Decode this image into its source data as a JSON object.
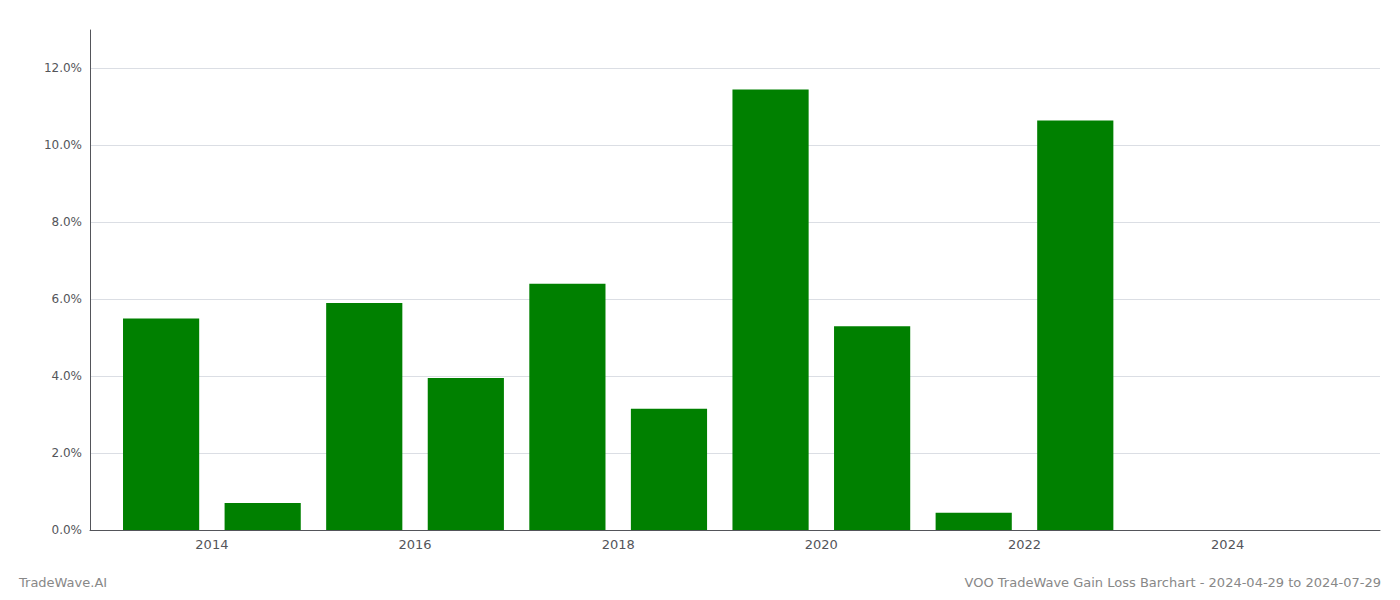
{
  "chart_data": {
    "type": "bar",
    "title": "VOO TradeWave Gain Loss Barchart - 2024-04-29 to 2024-07-29",
    "annotations": [
      "TradeWave.AI"
    ],
    "x": [
      2013,
      2014,
      2015,
      2016,
      2017,
      2018,
      2019,
      2020,
      2021,
      2022,
      2023,
      2024
    ],
    "values": [
      0.055,
      0.007,
      0.059,
      0.0395,
      0.064,
      0.0315,
      0.1145,
      0.053,
      0.0045,
      0.1065,
      0.0,
      0.0
    ],
    "color": "#008000",
    "xlim": [
      2012.3,
      2025.0
    ],
    "xticks": [
      {
        "value": 2013.5,
        "label": "2014"
      },
      {
        "value": 2015.5,
        "label": "2016"
      },
      {
        "value": 2017.5,
        "label": "2018"
      },
      {
        "value": 2019.5,
        "label": "2020"
      },
      {
        "value": 2021.5,
        "label": "2022"
      },
      {
        "value": 2023.5,
        "label": "2024"
      }
    ],
    "ylim": [
      0,
      0.13
    ],
    "yticks": [
      {
        "value": 0.0,
        "label": "0.0%"
      },
      {
        "value": 0.02,
        "label": "2.0%"
      },
      {
        "value": 0.04,
        "label": "4.0%"
      },
      {
        "value": 0.06,
        "label": "6.0%"
      },
      {
        "value": 0.08,
        "label": "8.0%"
      },
      {
        "value": 0.1,
        "label": "10.0%"
      },
      {
        "value": 0.12,
        "label": "12.0%"
      }
    ],
    "grid": true
  }
}
